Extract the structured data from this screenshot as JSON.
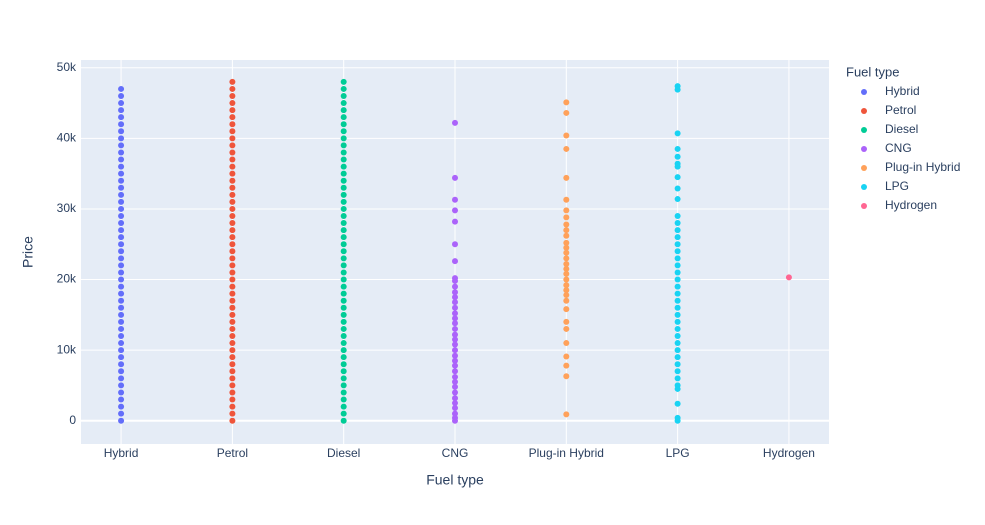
{
  "chart_data": {
    "type": "strip",
    "x_label": "Fuel type",
    "y_label": "Price",
    "legend_title": "Fuel type",
    "categories": [
      "Hybrid",
      "Petrol",
      "Diesel",
      "CNG",
      "Plug-in Hybrid",
      "LPG",
      "Hydrogen"
    ],
    "ylim": [
      -3300,
      51100
    ],
    "yticks": [
      0,
      {
        "value": 10000,
        "label": "10k"
      },
      {
        "value": 20000,
        "label": "20k"
      },
      {
        "value": 30000,
        "label": "30k"
      },
      {
        "value": 40000,
        "label": "40k"
      },
      {
        "value": 50000,
        "label": "50k"
      }
    ],
    "grid": true,
    "legend": "right",
    "series": [
      {
        "name": "Hybrid",
        "color": "#636efa",
        "values": [
          0,
          1000,
          2000,
          3000,
          4000,
          5000,
          6000,
          7000,
          8000,
          9000,
          10000,
          11000,
          12000,
          13000,
          14000,
          15000,
          16000,
          17000,
          18000,
          19000,
          20000,
          21000,
          22000,
          23000,
          24000,
          25000,
          26000,
          27000,
          28000,
          29000,
          30000,
          31000,
          32000,
          33000,
          34000,
          35000,
          36000,
          37000,
          38000,
          39000,
          40000,
          41000,
          42000,
          43000,
          44000,
          45000,
          46000,
          47000
        ]
      },
      {
        "name": "Petrol",
        "color": "#ef553b",
        "values": [
          0,
          1000,
          2000,
          3000,
          4000,
          5000,
          6000,
          7000,
          8000,
          9000,
          10000,
          11000,
          12000,
          13000,
          14000,
          15000,
          16000,
          17000,
          18000,
          19000,
          20000,
          21000,
          22000,
          23000,
          24000,
          25000,
          26000,
          27000,
          28000,
          29000,
          30000,
          31000,
          32000,
          33000,
          34000,
          35000,
          36000,
          37000,
          38000,
          39000,
          40000,
          41000,
          42000,
          43000,
          44000,
          45000,
          46000,
          47000,
          48000
        ]
      },
      {
        "name": "Diesel",
        "color": "#00cc96",
        "values": [
          0,
          1000,
          2000,
          3000,
          4000,
          5000,
          6000,
          7000,
          8000,
          9000,
          10000,
          11000,
          12000,
          13000,
          14000,
          15000,
          16000,
          17000,
          18000,
          19000,
          20000,
          21000,
          22000,
          23000,
          24000,
          25000,
          26000,
          27000,
          28000,
          29000,
          30000,
          31000,
          32000,
          33000,
          34000,
          35000,
          36000,
          37000,
          38000,
          39000,
          40000,
          41000,
          42000,
          43000,
          44000,
          45000,
          46000,
          47000,
          48000
        ]
      },
      {
        "name": "CNG",
        "color": "#ab63fa",
        "values": [
          42200,
          34400,
          31300,
          29800,
          28200,
          25000,
          22600,
          20200,
          19800,
          19000,
          18200,
          17500,
          16800,
          16000,
          15200,
          14500,
          13800,
          13000,
          12200,
          11500,
          10800,
          10000,
          9200,
          8500,
          7800,
          7000,
          6200,
          5500,
          4800,
          4000,
          3200,
          2500,
          1800,
          1000,
          400,
          0
        ]
      },
      {
        "name": "Plug-in Hybrid",
        "color": "#ffa15a",
        "values": [
          45100,
          43600,
          40400,
          38500,
          34400,
          31300,
          29800,
          28800,
          27800,
          27000,
          26200,
          25200,
          24500,
          23800,
          23000,
          22200,
          21500,
          20800,
          20000,
          19200,
          18500,
          17800,
          17000,
          15800,
          14000,
          13000,
          11000,
          9100,
          7800,
          6300,
          900
        ]
      },
      {
        "name": "LPG",
        "color": "#19d3f3",
        "values": [
          47400,
          46900,
          40700,
          38500,
          37400,
          36400,
          36000,
          34500,
          32900,
          31400,
          29000,
          28000,
          27000,
          26000,
          25000,
          24000,
          23000,
          22000,
          21000,
          20000,
          19000,
          18000,
          17000,
          16000,
          15000,
          14000,
          13000,
          12000,
          11000,
          10000,
          9000,
          8000,
          7000,
          6000,
          5000,
          4500,
          2400,
          400,
          0
        ]
      },
      {
        "name": "Hydrogen",
        "color": "#ff6692",
        "values": [
          20300
        ]
      }
    ]
  }
}
